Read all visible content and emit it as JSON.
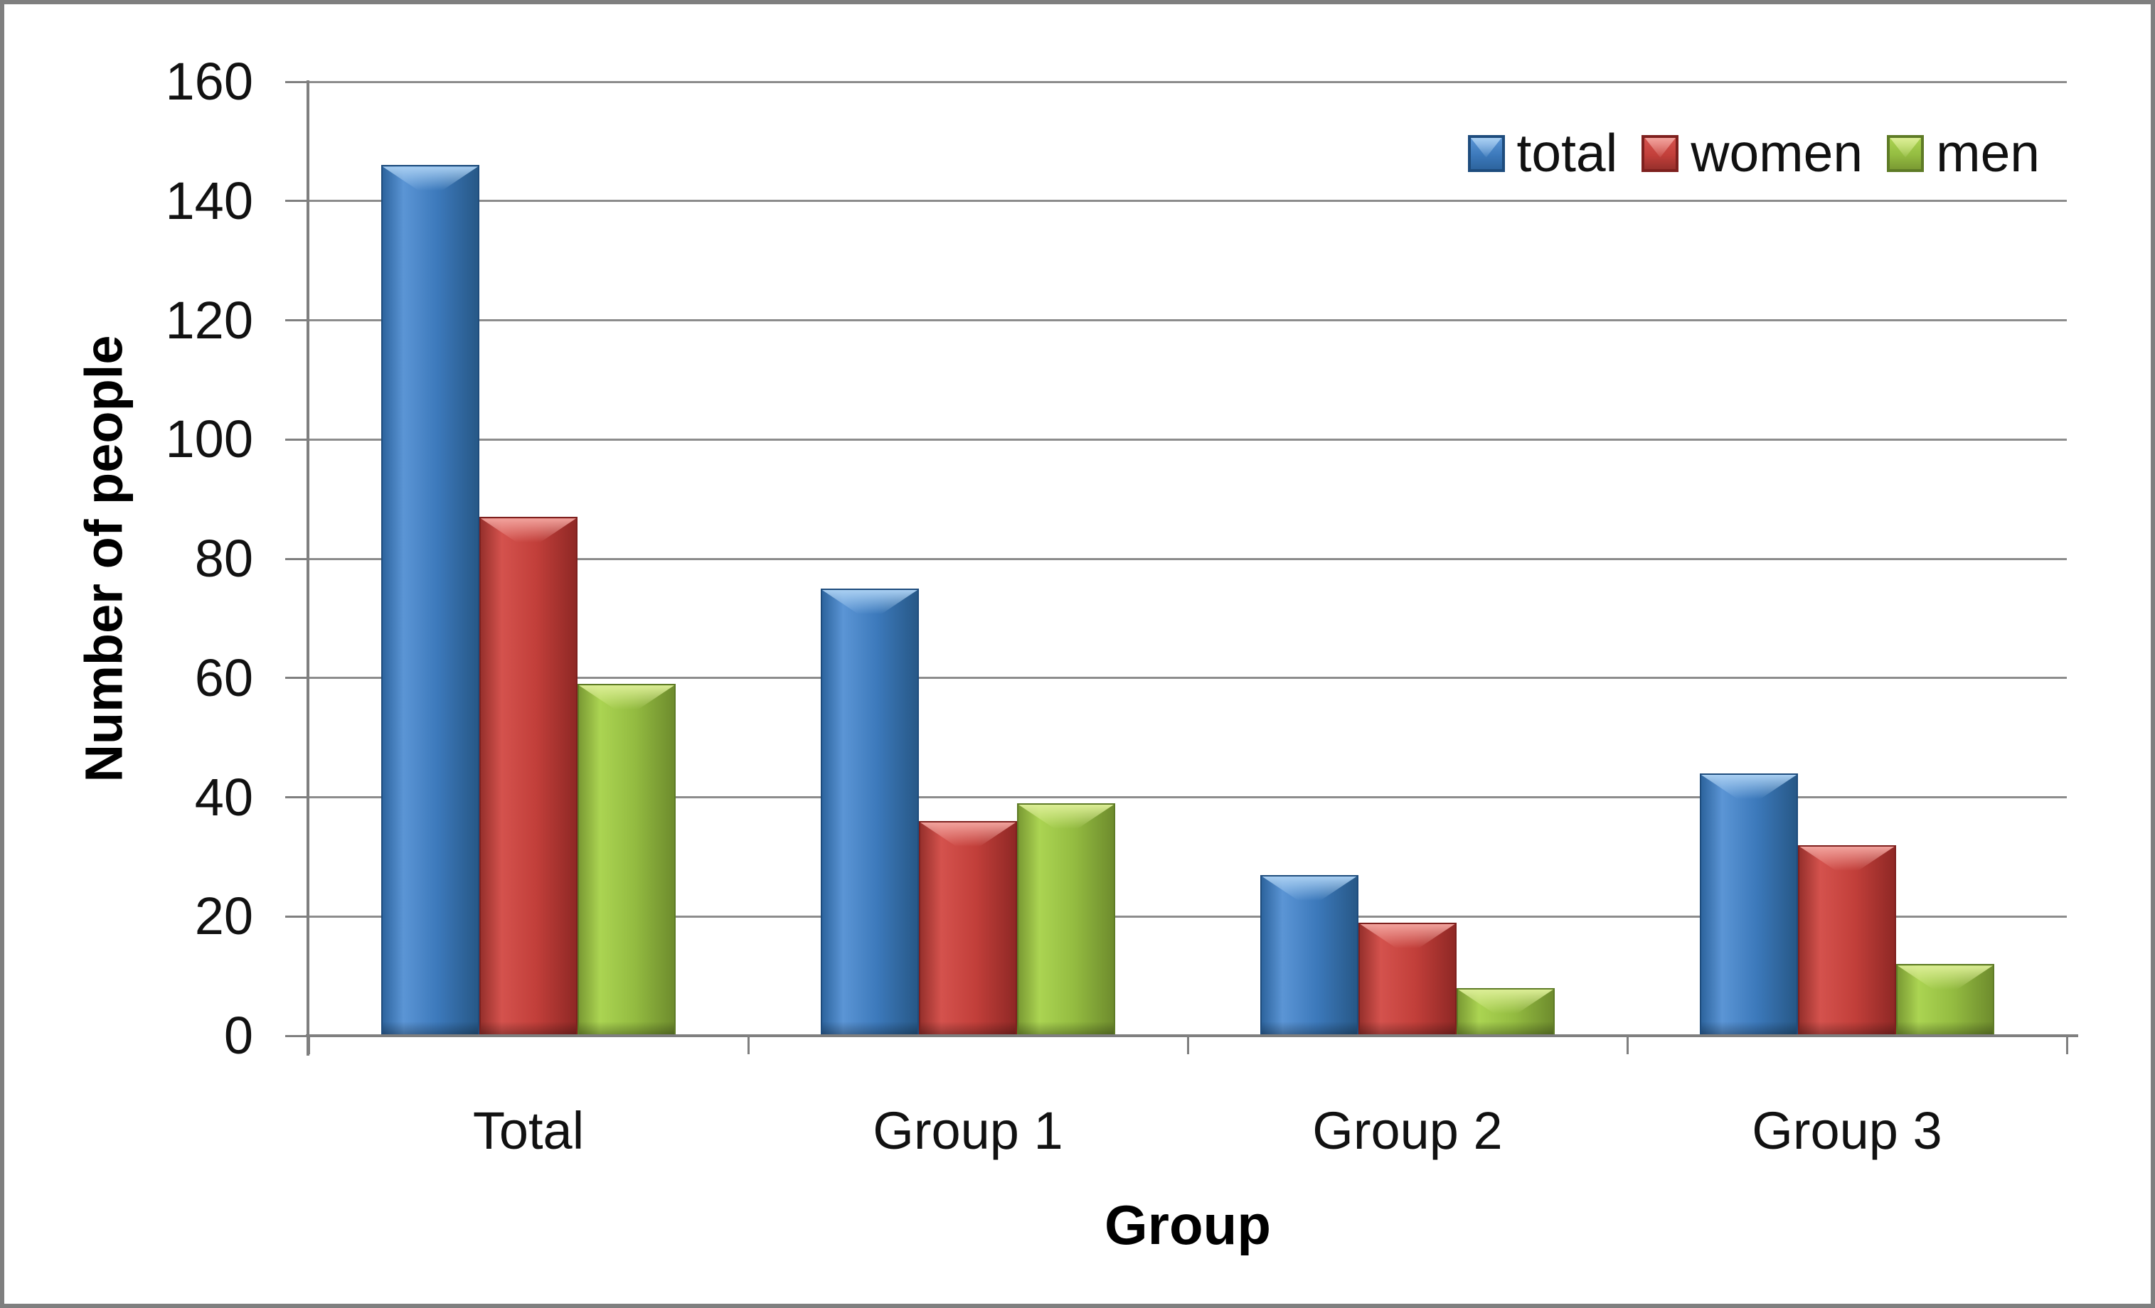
{
  "chart_data": {
    "type": "bar",
    "title": "",
    "categories": [
      "Total",
      "Group 1",
      "Group 2",
      "Group 3"
    ],
    "series": [
      {
        "name": "total",
        "values": [
          146,
          75,
          27,
          44
        ],
        "color": "#3c79bb",
        "palette": {
          "edge": "#1e4c7d",
          "dark": "#2d649e",
          "light": "#5b95d5",
          "mid": "#3c79bb",
          "dark2": "#275887",
          "cap": "#a9cff2"
        }
      },
      {
        "name": "women",
        "values": [
          87,
          36,
          19,
          32
        ],
        "color": "#c23f3a",
        "palette": {
          "edge": "#7e201e",
          "dark": "#97302c",
          "light": "#d4524d",
          "mid": "#c23f3a",
          "dark2": "#8f2825",
          "cap": "#f2a39d"
        }
      },
      {
        "name": "men",
        "values": [
          59,
          39,
          8,
          12
        ],
        "color": "#94bc41",
        "palette": {
          "edge": "#5e7b26",
          "dark": "#7a9a33",
          "light": "#abd452",
          "mid": "#94bc41",
          "dark2": "#6e8c2d",
          "cap": "#dcee96"
        }
      }
    ],
    "xlabel": "Group",
    "ylabel": "Number of people",
    "ylim": [
      0,
      160
    ],
    "ytick_step": 20,
    "yticks": [
      0,
      20,
      40,
      60,
      80,
      100,
      120,
      140,
      160
    ],
    "grid": true,
    "legend_position": "top-right",
    "gridline_color": "#8c8c8c",
    "axis_color": "#7f7f7f",
    "text_color": "#111111"
  }
}
